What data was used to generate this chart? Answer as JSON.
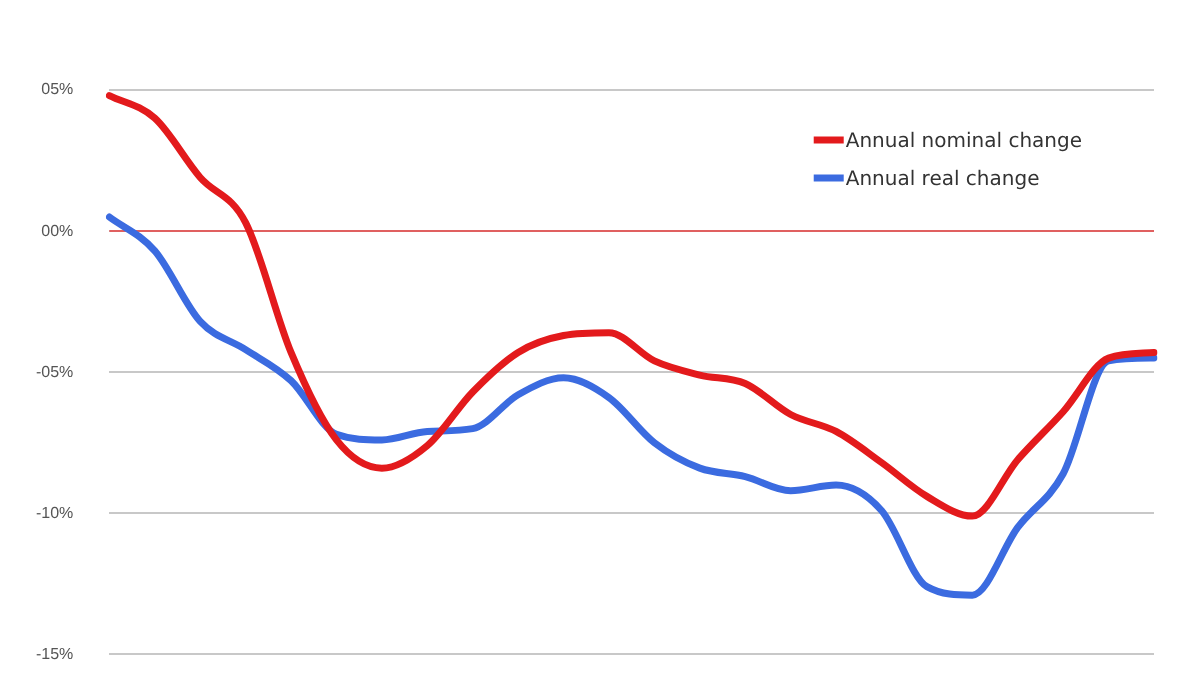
{
  "chart_data": {
    "type": "line",
    "categories": [
      null,
      null,
      null,
      null,
      null,
      null,
      null,
      null,
      null,
      null,
      null,
      null,
      null,
      null,
      null,
      null,
      null,
      null,
      null,
      null,
      null,
      null,
      null,
      null
    ],
    "series": [
      {
        "name": "Annual nominal change",
        "color": "#e31a1c",
        "values": [
          4.8,
          4.0,
          1.9,
          0.3,
          -4.3,
          -7.4,
          -8.4,
          -7.6,
          -5.7,
          -4.3,
          -3.7,
          -3.6,
          -4.6,
          -5.1,
          -5.4,
          -6.5,
          -7.1,
          -8.2,
          -9.4,
          -10.1,
          -8.1,
          -6.4,
          -4.5,
          -4.3
        ]
      },
      {
        "name": "Annual real change",
        "color": "#3b6be0",
        "values": [
          0.5,
          -0.7,
          -3.2,
          -4.2,
          -5.3,
          -7.2,
          -7.4,
          -7.1,
          -7.0,
          -5.8,
          -5.2,
          -5.9,
          -7.5,
          -8.4,
          -8.7,
          -9.2,
          -9.0,
          -9.9,
          -12.6,
          -12.9,
          -10.5,
          -8.6,
          -4.6,
          -4.5
        ]
      }
    ],
    "ylim": [
      -15,
      5
    ],
    "yticks": [
      {
        "value": 5,
        "label": "05%"
      },
      {
        "value": 0,
        "label": "00%"
      },
      {
        "value": -5,
        "label": "-05%"
      },
      {
        "value": -10,
        "label": "-10%"
      },
      {
        "value": -15,
        "label": "-15%"
      }
    ],
    "ref_lines": [
      {
        "axis": "y",
        "value": 0,
        "label": null,
        "color": "#e06060"
      }
    ],
    "grid": "y",
    "legend": "top right",
    "marker": "none",
    "line_style": "solid",
    "tick_labels": "y"
  }
}
